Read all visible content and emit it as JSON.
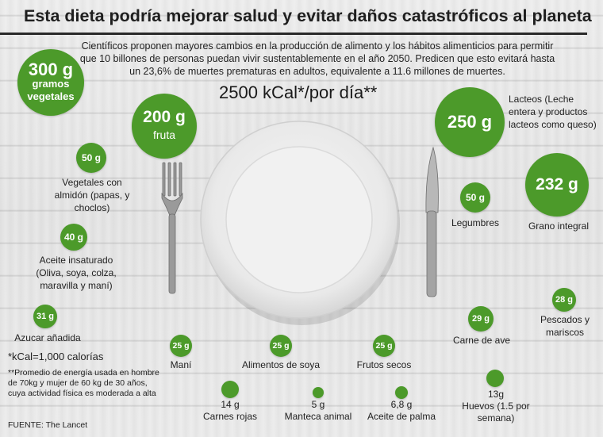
{
  "title": "Esta dieta podría mejorar salud y evitar daños catastróficos al planeta",
  "subtitle": "Científicos proponen mayores cambios en la producción de alimento y los hábitos alimenticios para permitir que 10 billones de personas puedan vivir sustentablemente en el año 2050. Predicen que esto evitará hasta un 23,6% de muertes prematuras en adultos, equivalente a 11.6 millones de muertes.",
  "energy": "2500 kCal*/por día**",
  "items": {
    "vegetales": {
      "amount": "300 g",
      "label": "gramos vegetales"
    },
    "fruta": {
      "amount": "200 g",
      "label": "fruta"
    },
    "almidon": {
      "amount": "50 g",
      "label": "Vegetales con almidón (papas, y choclos)"
    },
    "aceite": {
      "amount": "40 g",
      "label": "Aceite insaturado (Oliva, soya, colza, maravilla y maní)"
    },
    "azucar": {
      "amount": "31 g",
      "label": "Azucar añadida"
    },
    "mani": {
      "amount": "25 g",
      "label": "Maní"
    },
    "soya": {
      "amount": "25 g",
      "label": "Alimentos de soya"
    },
    "frutos": {
      "amount": "25 g",
      "label": "Frutos secos"
    },
    "carnes": {
      "amount": "14 g",
      "label": "Carnes rojas"
    },
    "manteca": {
      "amount": "5 g",
      "label": "Manteca animal"
    },
    "palma": {
      "amount": "6,8 g",
      "label": "Aceite de palma"
    },
    "huevos": {
      "amount": "13g",
      "label": "Huevos (1.5 por semana)"
    },
    "lacteos": {
      "amount": "250 g",
      "label": "Lacteos (Leche entera y productos lacteos como queso)"
    },
    "integral": {
      "amount": "232 g",
      "label": "Grano integral"
    },
    "legumbres": {
      "amount": "50 g",
      "label": "Legumbres"
    },
    "pescados": {
      "amount": "28 g",
      "label": "Pescados y mariscos"
    },
    "ave": {
      "amount": "29 g",
      "label": "Carne de ave"
    }
  },
  "footnotes": {
    "kcal": "*kCal=1,000 calorías",
    "energy": "**Promedio de energía usada en hombre de 70kg y mujer de 60 kg de 30 años, cuya actividad física es moderada a alta",
    "source": "FUENTE: The Lancet"
  },
  "colors": {
    "accent": "#4c9a2a",
    "title_rule": "#2a2a2a"
  }
}
